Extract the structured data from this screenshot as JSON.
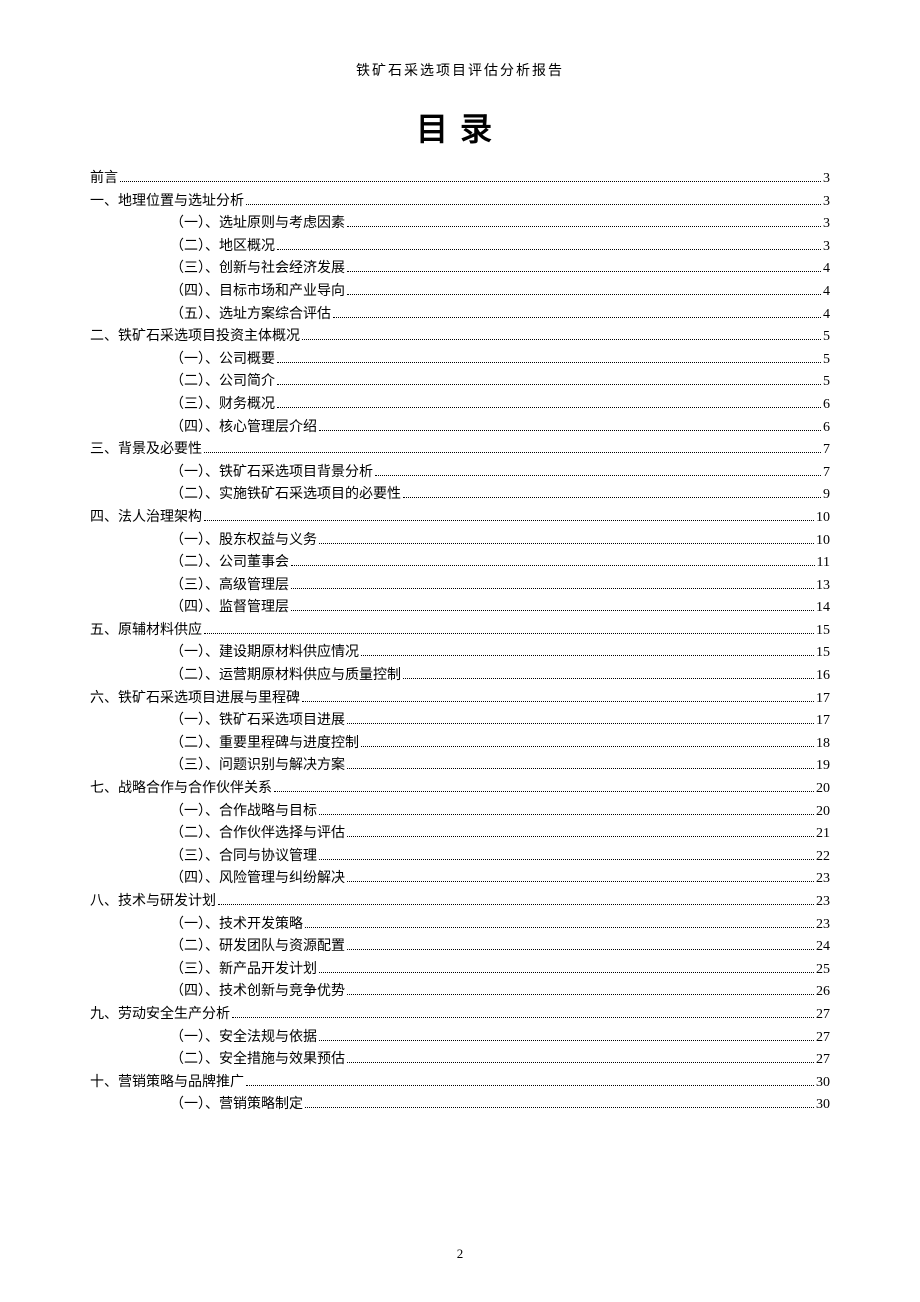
{
  "doc_header": "铁矿石采选项目评估分析报告",
  "toc_title": "目录",
  "page_number": "2",
  "entries": [
    {
      "level": 0,
      "label": "前言",
      "page": "3"
    },
    {
      "level": 1,
      "label": "一、地理位置与选址分析",
      "page": "3"
    },
    {
      "level": 2,
      "label": "（一）、选址原则与考虑因素",
      "page": "3"
    },
    {
      "level": 2,
      "label": "（二）、地区概况",
      "page": "3"
    },
    {
      "level": 2,
      "label": "（三）、创新与社会经济发展",
      "page": "4"
    },
    {
      "level": 2,
      "label": "（四）、目标市场和产业导向",
      "page": "4"
    },
    {
      "level": 2,
      "label": "（五）、选址方案综合评估",
      "page": "4"
    },
    {
      "level": 1,
      "label": "二、铁矿石采选项目投资主体概况",
      "page": "5"
    },
    {
      "level": 2,
      "label": "（一）、公司概要",
      "page": "5"
    },
    {
      "level": 2,
      "label": "（二）、公司简介",
      "page": "5"
    },
    {
      "level": 2,
      "label": "（三）、财务概况",
      "page": "6"
    },
    {
      "level": 2,
      "label": "（四）、核心管理层介绍",
      "page": "6"
    },
    {
      "level": 1,
      "label": "三、背景及必要性",
      "page": "7"
    },
    {
      "level": 2,
      "label": "（一）、铁矿石采选项目背景分析",
      "page": "7"
    },
    {
      "level": 2,
      "label": "（二）、实施铁矿石采选项目的必要性",
      "page": "9"
    },
    {
      "level": 1,
      "label": "四、法人治理架构",
      "page": "10"
    },
    {
      "level": 2,
      "label": "（一）、股东权益与义务",
      "page": "10"
    },
    {
      "level": 2,
      "label": "（二）、公司董事会",
      "page": "11"
    },
    {
      "level": 2,
      "label": "（三）、高级管理层",
      "page": "13"
    },
    {
      "level": 2,
      "label": "（四）、监督管理层",
      "page": "14"
    },
    {
      "level": 1,
      "label": "五、原辅材料供应",
      "page": "15"
    },
    {
      "level": 2,
      "label": "（一）、建设期原材料供应情况",
      "page": "15"
    },
    {
      "level": 2,
      "label": "（二）、运营期原材料供应与质量控制",
      "page": "16"
    },
    {
      "level": 1,
      "label": "六、铁矿石采选项目进展与里程碑",
      "page": "17"
    },
    {
      "level": 2,
      "label": "（一）、铁矿石采选项目进展",
      "page": "17"
    },
    {
      "level": 2,
      "label": "（二）、重要里程碑与进度控制",
      "page": "18"
    },
    {
      "level": 2,
      "label": "（三）、问题识别与解决方案",
      "page": "19"
    },
    {
      "level": 1,
      "label": "七、战略合作与合作伙伴关系",
      "page": "20"
    },
    {
      "level": 2,
      "label": "（一）、合作战略与目标",
      "page": "20"
    },
    {
      "level": 2,
      "label": "（二）、合作伙伴选择与评估",
      "page": "21"
    },
    {
      "level": 2,
      "label": "（三）、合同与协议管理",
      "page": "22"
    },
    {
      "level": 2,
      "label": "（四）、风险管理与纠纷解决",
      "page": "23"
    },
    {
      "level": 1,
      "label": "八、技术与研发计划",
      "page": "23"
    },
    {
      "level": 2,
      "label": "（一）、技术开发策略",
      "page": "23"
    },
    {
      "level": 2,
      "label": "（二）、研发团队与资源配置",
      "page": "24"
    },
    {
      "level": 2,
      "label": "（三）、新产品开发计划",
      "page": "25"
    },
    {
      "level": 2,
      "label": "（四）、技术创新与竞争优势",
      "page": "26"
    },
    {
      "level": 1,
      "label": "九、劳动安全生产分析",
      "page": "27"
    },
    {
      "level": 2,
      "label": "（一）、安全法规与依据",
      "page": "27"
    },
    {
      "level": 2,
      "label": "（二）、安全措施与效果预估",
      "page": "27"
    },
    {
      "level": 1,
      "label": "十、营销策略与品牌推广",
      "page": "30"
    },
    {
      "level": 2,
      "label": "（一）、营销策略制定",
      "page": "30"
    }
  ]
}
